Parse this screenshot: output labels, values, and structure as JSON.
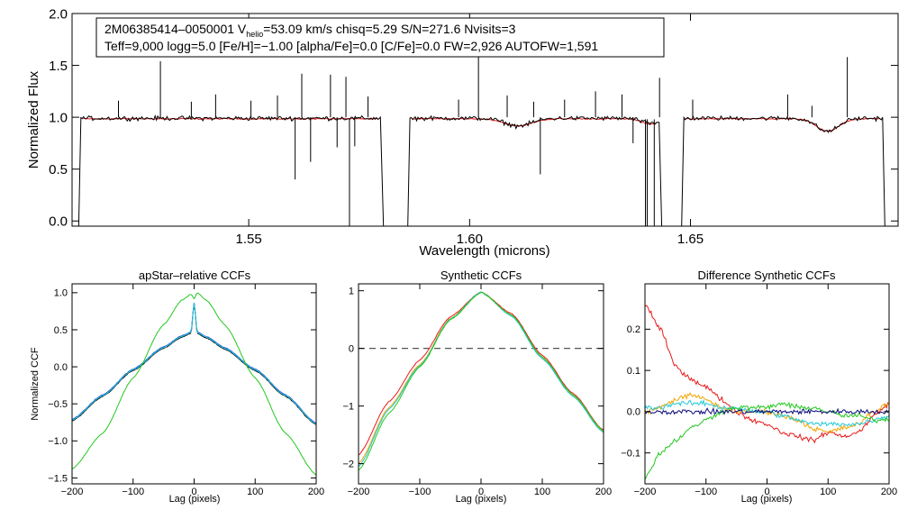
{
  "chart_data": [
    {
      "type": "line",
      "id": "spectrum",
      "title": "",
      "xlabel": "Wavelength (microns)",
      "ylabel": "Normalized Flux",
      "xlim": [
        1.51,
        1.697
      ],
      "ylim": [
        -0.05,
        2.0
      ],
      "xticks": [
        1.55,
        1.6,
        1.65
      ],
      "xtick_labels": [
        "1.55",
        "1.60",
        "1.65"
      ],
      "yticks": [
        0.0,
        0.5,
        1.0,
        1.5,
        2.0
      ],
      "ytick_labels": [
        "0.0",
        "0.5",
        "1.0",
        "1.5",
        "2.0"
      ],
      "info": {
        "star_id": "2M06385414–0050001",
        "vhelio_prefix": "V",
        "vhelio_sub": "helio",
        "vhelio_rest": "=53.09 km/s  chisq=5.29  S/N=271.6  Nvisits=3",
        "line2": "Teff=9,000 logg=5.0 [Fe/H]=−1.00 [alpha/Fe]=0.0 [C/Fe]=0.0 FW=2,926 AUTOFW=1,591"
      },
      "chips": [
        {
          "start": 1.5115,
          "end": 1.5805
        },
        {
          "start": 1.586,
          "end": 1.6435
        },
        {
          "start": 1.648,
          "end": 1.694
        }
      ],
      "absorption_features": [
        {
          "center": 1.611,
          "depth": 0.07,
          "width": 0.003
        },
        {
          "center": 1.641,
          "depth": 0.05,
          "width": 0.002
        },
        {
          "center": 1.681,
          "depth": 0.12,
          "width": 0.0025
        }
      ],
      "emission_spikes": [
        {
          "x": 1.5205,
          "peak": 1.16
        },
        {
          "x": 1.53,
          "peak": 1.54
        },
        {
          "x": 1.537,
          "peak": 1.15
        },
        {
          "x": 1.5425,
          "peak": 1.22
        },
        {
          "x": 1.5505,
          "peak": 1.16
        },
        {
          "x": 1.5565,
          "peak": 1.21
        },
        {
          "x": 1.562,
          "peak": 1.42
        },
        {
          "x": 1.5685,
          "peak": 1.41
        },
        {
          "x": 1.572,
          "peak": 1.39
        },
        {
          "x": 1.577,
          "peak": 1.2
        },
        {
          "x": 1.5975,
          "peak": 1.17
        },
        {
          "x": 1.602,
          "peak": 1.61
        },
        {
          "x": 1.6085,
          "peak": 1.21
        },
        {
          "x": 1.6145,
          "peak": 1.15
        },
        {
          "x": 1.6215,
          "peak": 1.17
        },
        {
          "x": 1.6285,
          "peak": 1.25
        },
        {
          "x": 1.6345,
          "peak": 1.22
        },
        {
          "x": 1.643,
          "peak": 1.38
        },
        {
          "x": 1.6505,
          "peak": 1.17
        },
        {
          "x": 1.672,
          "peak": 1.22
        },
        {
          "x": 1.6775,
          "peak": 1.11
        },
        {
          "x": 1.6855,
          "peak": 1.58
        }
      ],
      "dropouts": [
        {
          "x": 1.5605,
          "low": 0.4
        },
        {
          "x": 1.564,
          "low": 0.57
        },
        {
          "x": 1.57,
          "low": 0.71
        },
        {
          "x": 1.574,
          "low": 0.72
        },
        {
          "x": 1.616,
          "low": 0.45
        },
        {
          "x": 1.637,
          "low": 0.75
        }
      ],
      "series": [
        {
          "name": "observed spectrum",
          "color": "#000000"
        },
        {
          "name": "synthetic fit",
          "color": "#e8191a"
        }
      ]
    },
    {
      "type": "line",
      "id": "apstar_ccf",
      "title": "apStar–relative CCFs",
      "xlabel": "Lag (pixels)",
      "ylabel": "Normalized CCF",
      "xlim": [
        -200,
        200
      ],
      "ylim": [
        -1.58,
        1.12
      ],
      "xticks": [
        -200,
        -100,
        0,
        100,
        200
      ],
      "xtick_labels": [
        "−200",
        "−100",
        "0",
        "100",
        "200"
      ],
      "yticks": [
        -1.5,
        -1.0,
        -0.5,
        0.0,
        0.5,
        1.0
      ],
      "ytick_labels": [
        "−1.5",
        "−1.0",
        "−0.5",
        "0.0",
        "0.5",
        "1.0"
      ],
      "x": [
        -200,
        -150,
        -100,
        -50,
        -20,
        -5,
        0,
        5,
        20,
        50,
        100,
        150,
        200
      ],
      "series": [
        {
          "name": "visit CCF (black)",
          "color": "#000000",
          "values": [
            -0.73,
            -0.4,
            -0.05,
            0.25,
            0.4,
            0.45,
            0.86,
            0.45,
            0.39,
            0.24,
            -0.05,
            -0.4,
            -0.78
          ]
        },
        {
          "name": "visit CCF (blue)",
          "color": "#1f4fdc",
          "values": [
            -0.71,
            -0.38,
            -0.03,
            0.27,
            0.42,
            0.47,
            0.87,
            0.47,
            0.41,
            0.26,
            -0.03,
            -0.38,
            -0.76
          ]
        },
        {
          "name": "visit CCF (cyan)",
          "color": "#22c8d8",
          "values": [
            -0.72,
            -0.39,
            -0.04,
            0.26,
            0.41,
            0.46,
            0.86,
            0.46,
            0.4,
            0.25,
            -0.04,
            -0.39,
            -0.77
          ]
        },
        {
          "name": "combined CCF (green)",
          "color": "#22c81e",
          "values": [
            -1.38,
            -0.9,
            -0.15,
            0.57,
            0.9,
            0.98,
            0.92,
            1.0,
            0.9,
            0.57,
            -0.15,
            -0.9,
            -1.46
          ]
        }
      ]
    },
    {
      "type": "line",
      "id": "synthetic_ccf",
      "title": "Synthetic CCFs",
      "xlabel": "Lag (pixels)",
      "ylabel": "",
      "xlim": [
        -200,
        200
      ],
      "ylim": [
        -2.35,
        1.12
      ],
      "xticks": [
        -200,
        -100,
        0,
        100,
        200
      ],
      "xtick_labels": [
        "−200",
        "−100",
        "0",
        "100",
        "200"
      ],
      "yticks": [
        -2,
        -1,
        0,
        1
      ],
      "ytick_labels": [
        "−2",
        "−1",
        "0",
        "1"
      ],
      "reference_line": {
        "y": 0,
        "style": "dashed",
        "color": "#555555"
      },
      "x": [
        -200,
        -150,
        -100,
        -50,
        0,
        50,
        100,
        150,
        200
      ],
      "series": [
        {
          "name": "synthetic CCF (red)",
          "color": "#e8191a",
          "values": [
            -1.85,
            -0.92,
            -0.2,
            0.55,
            0.98,
            0.6,
            -0.12,
            -0.78,
            -1.42
          ]
        },
        {
          "name": "synthetic CCF (orange)",
          "color": "#f0a500",
          "values": [
            -2.0,
            -1.02,
            -0.28,
            0.52,
            0.98,
            0.57,
            -0.17,
            -0.82,
            -1.45
          ]
        },
        {
          "name": "synthetic CCF (cyan)",
          "color": "#22c8d8",
          "values": [
            -2.05,
            -1.05,
            -0.3,
            0.51,
            0.98,
            0.56,
            -0.18,
            -0.83,
            -1.46
          ]
        },
        {
          "name": "synthetic CCF (green)",
          "color": "#22c81e",
          "values": [
            -2.12,
            -1.12,
            -0.32,
            0.5,
            0.97,
            0.58,
            -0.15,
            -0.8,
            -1.43
          ]
        }
      ]
    },
    {
      "type": "line",
      "id": "difference_ccf",
      "title": "Difference Synthetic CCFs",
      "xlabel": "Lag (pixels)",
      "ylabel": "",
      "xlim": [
        -200,
        200
      ],
      "ylim": [
        -0.175,
        0.31
      ],
      "xticks": [
        -200,
        -100,
        0,
        100,
        200
      ],
      "xtick_labels": [
        "−200",
        "−100",
        "0",
        "100",
        "200"
      ],
      "yticks": [
        -0.1,
        0.0,
        0.1,
        0.2
      ],
      "ytick_labels": [
        "−0.1",
        "0.0",
        "0.1",
        "0.2"
      ],
      "x": [
        -200,
        -175,
        -150,
        -125,
        -100,
        -75,
        -50,
        -25,
        0,
        25,
        50,
        75,
        100,
        125,
        150,
        175,
        200
      ],
      "series": [
        {
          "name": "difference (red)",
          "color": "#e8191a",
          "values": [
            0.26,
            0.2,
            0.11,
            0.08,
            0.06,
            0.03,
            0.0,
            -0.02,
            -0.03,
            -0.05,
            -0.06,
            -0.07,
            -0.05,
            -0.06,
            -0.05,
            -0.01,
            0.02
          ]
        },
        {
          "name": "difference (orange)",
          "color": "#f0a500",
          "values": [
            0.0,
            0.01,
            0.03,
            0.04,
            0.03,
            0.01,
            0.0,
            0.0,
            0.0,
            -0.01,
            -0.02,
            -0.04,
            -0.05,
            -0.04,
            -0.03,
            0.0,
            0.02
          ]
        },
        {
          "name": "difference (cyan)",
          "color": "#22c8d8",
          "values": [
            0.01,
            0.01,
            0.02,
            0.02,
            0.02,
            0.01,
            0.01,
            0.0,
            0.0,
            -0.01,
            -0.02,
            -0.03,
            -0.03,
            -0.03,
            -0.03,
            -0.02,
            -0.01
          ]
        },
        {
          "name": "difference (green)",
          "color": "#22c81e",
          "values": [
            -0.16,
            -0.1,
            -0.07,
            -0.04,
            -0.02,
            0.0,
            0.01,
            0.01,
            0.01,
            0.02,
            0.01,
            0.01,
            0.0,
            -0.01,
            -0.01,
            -0.02,
            -0.02
          ]
        },
        {
          "name": "difference (navy)",
          "color": "#0b0b7a",
          "values": [
            0.0,
            0.0,
            0.0,
            0.0,
            0.0,
            0.0,
            0.0,
            0.0,
            0.0,
            0.0,
            0.0,
            0.0,
            0.0,
            0.0,
            0.0,
            0.0,
            0.0
          ]
        }
      ]
    }
  ]
}
